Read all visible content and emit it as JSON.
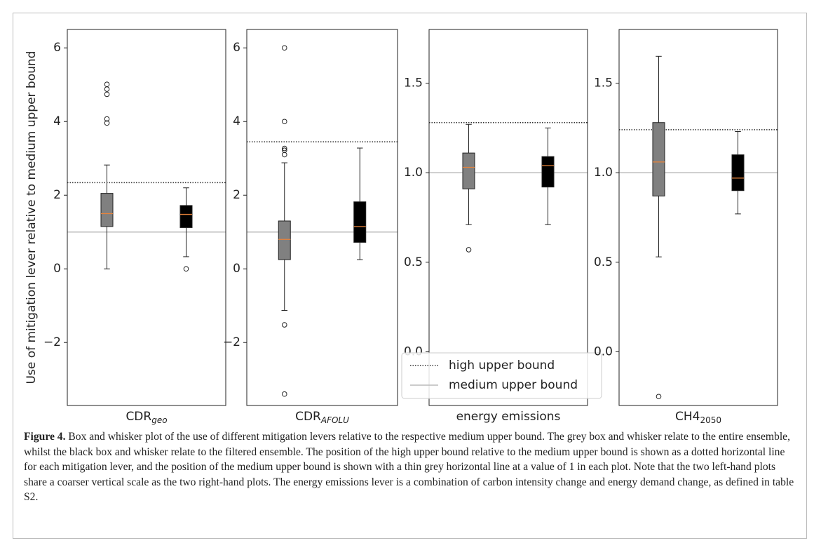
{
  "chart_data": [
    {
      "type": "box",
      "xlabel": "CDR",
      "xlabel_sub": "geo",
      "xlabel_sub_italic": true,
      "ylabel": "Use of mitigation lever relative to medium upper bound",
      "ylim": [
        -3.71,
        6.5
      ],
      "yticks": [
        {
          "value": -2,
          "label": "−2"
        },
        0,
        2,
        4,
        6
      ],
      "high_upper_bound": 2.34,
      "medium_upper_bound": 1,
      "median_color": "#e8833a",
      "series": [
        {
          "color": "#808080",
          "whisker_low": 0,
          "q1": 1.15,
          "median": 1.5,
          "q3": 2.05,
          "whisker_high": 2.82,
          "outliers": [
            3.96,
            4.07,
            4.74,
            4.88,
            5.01
          ]
        },
        {
          "color": "#000000",
          "whisker_low": 0.33,
          "q1": 1.12,
          "median": 1.48,
          "q3": 1.72,
          "whisker_high": 2.2,
          "outliers": [
            0
          ]
        }
      ]
    },
    {
      "type": "box",
      "xlabel": "CDR",
      "xlabel_sub": "AFOLU",
      "xlabel_sub_italic": true,
      "ylim": [
        -3.71,
        6.5
      ],
      "yticks": [
        {
          "value": -2,
          "label": "−2"
        },
        0,
        2,
        4,
        6
      ],
      "high_upper_bound": 3.45,
      "medium_upper_bound": 1,
      "median_color": "#e8833a",
      "series": [
        {
          "color": "#808080",
          "whisker_low": -1.13,
          "q1": 0.25,
          "median": 0.8,
          "q3": 1.3,
          "whisker_high": 2.88,
          "outliers": [
            3.1,
            3.22,
            3.27,
            4.0,
            6.0,
            -1.52,
            -3.4
          ]
        },
        {
          "color": "#000000",
          "whisker_low": 0.25,
          "q1": 0.72,
          "median": 1.15,
          "q3": 1.82,
          "whisker_high": 3.28,
          "outliers": []
        }
      ]
    },
    {
      "type": "box",
      "xlabel": "energy emissions",
      "ylim": [
        -0.3,
        1.8
      ],
      "yticks": [
        {
          "value": 0,
          "label": "0.0"
        },
        0.5,
        {
          "value": 1,
          "label": "1.0"
        },
        1.5
      ],
      "high_upper_bound": 1.28,
      "medium_upper_bound": 1,
      "median_color": "#e8833a",
      "legend": [
        {
          "name": "high upper bound",
          "style": "dotted",
          "color": "#333333"
        },
        {
          "name": "medium upper bound",
          "style": "solid",
          "color": "#bbbbbb"
        }
      ],
      "series": [
        {
          "color": "#808080",
          "whisker_low": 0.71,
          "q1": 0.91,
          "median": 1.03,
          "q3": 1.11,
          "whisker_high": 1.27,
          "outliers": [
            0.57
          ]
        },
        {
          "color": "#000000",
          "whisker_low": 0.71,
          "q1": 0.92,
          "median": 1.04,
          "q3": 1.09,
          "whisker_high": 1.25,
          "outliers": []
        }
      ]
    },
    {
      "type": "box",
      "xlabel": "CH4",
      "xlabel_sub": "2050",
      "xlabel_sub_italic": false,
      "ylim": [
        -0.3,
        1.8
      ],
      "yticks": [
        {
          "value": 0,
          "label": "0.0"
        },
        0.5,
        {
          "value": 1,
          "label": "1.0"
        },
        1.5
      ],
      "high_upper_bound": 1.24,
      "medium_upper_bound": 1,
      "median_color": "#e8833a",
      "series": [
        {
          "color": "#808080",
          "whisker_low": 0.53,
          "q1": 0.87,
          "median": 1.06,
          "q3": 1.28,
          "whisker_high": 1.65,
          "outliers": [
            -0.25
          ]
        },
        {
          "color": "#000000",
          "whisker_low": 0.77,
          "q1": 0.9,
          "median": 0.97,
          "q3": 1.1,
          "whisker_high": 1.23,
          "outliers": []
        }
      ]
    }
  ],
  "caption": {
    "label": "Figure 4.",
    "text": "Box and whisker plot of the use of different mitigation levers relative to the respective medium upper bound. The grey box and whisker relate to the entire ensemble, whilst the black box and whisker relate to the filtered ensemble. The position of the high upper bound relative to the medium upper bound is shown as a dotted horizontal line for each mitigation lever, and the position of the medium upper bound is shown with a thin grey horizontal line at a value of 1 in each plot. Note that the two left-hand plots share a coarser vertical scale as the two right-hand plots. The energy emissions lever is a combination of carbon intensity change and energy demand change, as defined in table S2."
  }
}
